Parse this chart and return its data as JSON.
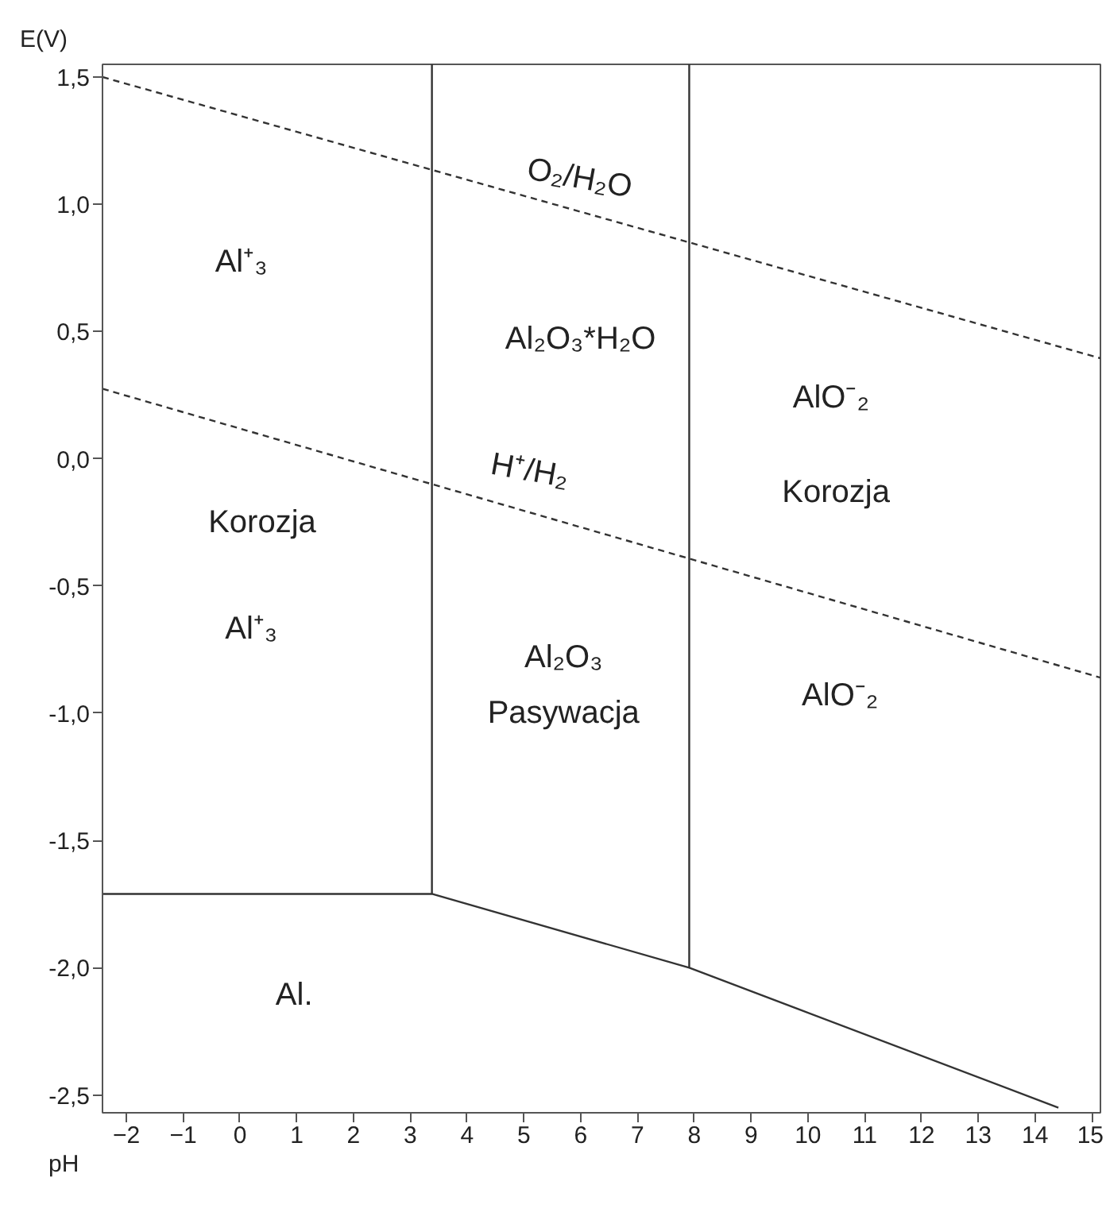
{
  "chart_data": {
    "type": "line",
    "xlabel": "pH",
    "ylabel": "E(V)",
    "xlim": [
      -2.42,
      15.15
    ],
    "ylim": [
      -2.57,
      1.55
    ],
    "xticks": [
      -2,
      -1,
      0,
      1,
      2,
      3,
      4,
      5,
      6,
      7,
      8,
      9,
      10,
      11,
      12,
      13,
      14,
      15
    ],
    "yticks": [
      {
        "value": 1.5,
        "label": "1,5"
      },
      {
        "value": 1.0,
        "label": "1,0"
      },
      {
        "value": 0.5,
        "label": "0,5"
      },
      {
        "value": 0.0,
        "label": "0,0"
      },
      {
        "value": -0.5,
        "label": "-0,5"
      },
      {
        "value": -1.0,
        "label": "-1,0"
      },
      {
        "value": -1.5,
        "label": "-1,5"
      },
      {
        "value": -2.0,
        "label": "-2,0"
      },
      {
        "value": -2.5,
        "label": "-2,5"
      }
    ],
    "grid": false,
    "line_style": "solid",
    "series": [
      {
        "color": "#333333",
        "line_style": "dashed",
        "x": [
          -2.42,
          15.15
        ],
        "values": [
          1.5,
          0.395
        ]
      },
      {
        "color": "#333333",
        "line_style": "dashed",
        "x": [
          -2.42,
          15.15
        ],
        "values": [
          0.275,
          -0.86
        ]
      },
      {
        "color": "#333333",
        "x": [
          3.38,
          3.38
        ],
        "values": [
          1.55,
          -1.71
        ]
      },
      {
        "color": "#333333",
        "x": [
          7.91,
          7.91
        ],
        "values": [
          1.55,
          -2.0
        ]
      },
      {
        "color": "#333333",
        "x": [
          -2.42,
          3.38,
          7.91,
          14.41
        ],
        "values": [
          -1.71,
          -1.71,
          -2.0,
          -2.55
        ]
      }
    ],
    "annotations": [
      "O₂/H₂O",
      "Al⁺₃",
      "Al₂O₃*H₂O",
      "AlO⁻₂",
      "H⁺/H₂",
      "Korozja",
      "Korozja",
      "Al⁺₃",
      "Al₂O₃",
      "Pasywacja",
      "AlO⁻₂",
      "Al."
    ]
  }
}
